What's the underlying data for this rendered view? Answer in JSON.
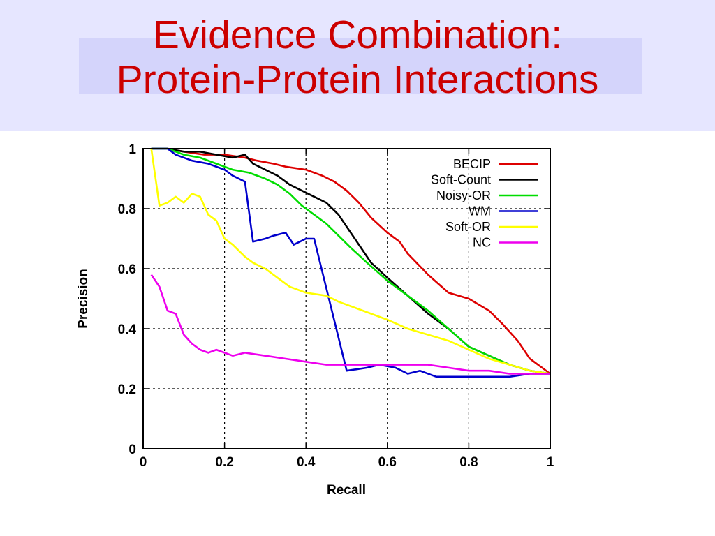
{
  "slide": {
    "title_line1": "Evidence Combination:",
    "title_line2": "Protein-Protein Interactions",
    "title_color": "#cc0000",
    "header_bg": "#e6e6ff"
  },
  "chart_data": {
    "type": "line",
    "title": "",
    "xlabel": "Recall",
    "ylabel": "Precision",
    "xlim": [
      0,
      1
    ],
    "ylim": [
      0,
      1
    ],
    "xticks": [
      0,
      0.2,
      0.4,
      0.6,
      0.8,
      1
    ],
    "yticks": [
      0,
      0.2,
      0.4,
      0.6,
      0.8,
      1
    ],
    "grid": true,
    "legend_position": "top-right",
    "series": [
      {
        "name": "BECIP",
        "color": "#dd0000",
        "x": [
          0.02,
          0.06,
          0.1,
          0.15,
          0.2,
          0.25,
          0.28,
          0.32,
          0.35,
          0.4,
          0.44,
          0.47,
          0.5,
          0.53,
          0.56,
          0.6,
          0.63,
          0.65,
          0.7,
          0.75,
          0.8,
          0.85,
          0.88,
          0.92,
          0.95,
          1.0
        ],
        "y": [
          1.0,
          1.0,
          0.99,
          0.98,
          0.98,
          0.97,
          0.96,
          0.95,
          0.94,
          0.93,
          0.91,
          0.89,
          0.86,
          0.82,
          0.77,
          0.72,
          0.69,
          0.65,
          0.58,
          0.52,
          0.5,
          0.46,
          0.42,
          0.36,
          0.3,
          0.25
        ]
      },
      {
        "name": "Soft-Count",
        "color": "#000000",
        "x": [
          0.02,
          0.06,
          0.1,
          0.14,
          0.18,
          0.22,
          0.25,
          0.27,
          0.3,
          0.33,
          0.36,
          0.39,
          0.42,
          0.45,
          0.48,
          0.5,
          0.53,
          0.56,
          0.6,
          0.65,
          0.7,
          0.75,
          0.8,
          0.85,
          0.9,
          0.95,
          1.0
        ],
        "y": [
          1.0,
          1.0,
          0.99,
          0.99,
          0.98,
          0.97,
          0.98,
          0.95,
          0.93,
          0.91,
          0.88,
          0.86,
          0.84,
          0.82,
          0.78,
          0.74,
          0.68,
          0.62,
          0.57,
          0.51,
          0.45,
          0.4,
          0.34,
          0.31,
          0.28,
          0.26,
          0.25
        ]
      },
      {
        "name": "Noisy-OR",
        "color": "#00dd00",
        "x": [
          0.02,
          0.06,
          0.1,
          0.14,
          0.18,
          0.22,
          0.26,
          0.3,
          0.33,
          0.36,
          0.39,
          0.42,
          0.45,
          0.48,
          0.51,
          0.55,
          0.6,
          0.65,
          0.7,
          0.75,
          0.8,
          0.85,
          0.9,
          0.95,
          1.0
        ],
        "y": [
          1.0,
          1.0,
          0.98,
          0.97,
          0.95,
          0.93,
          0.92,
          0.9,
          0.88,
          0.85,
          0.81,
          0.78,
          0.75,
          0.71,
          0.67,
          0.62,
          0.56,
          0.51,
          0.46,
          0.4,
          0.34,
          0.31,
          0.28,
          0.26,
          0.25
        ]
      },
      {
        "name": "WM",
        "color": "#0000cc",
        "x": [
          0.02,
          0.06,
          0.08,
          0.12,
          0.16,
          0.2,
          0.22,
          0.25,
          0.27,
          0.3,
          0.32,
          0.35,
          0.37,
          0.4,
          0.42,
          0.5,
          0.55,
          0.58,
          0.62,
          0.65,
          0.68,
          0.72,
          0.75,
          0.8,
          0.85,
          0.9,
          0.95,
          1.0
        ],
        "y": [
          1.0,
          1.0,
          0.98,
          0.96,
          0.95,
          0.93,
          0.91,
          0.89,
          0.69,
          0.7,
          0.71,
          0.72,
          0.68,
          0.7,
          0.7,
          0.26,
          0.27,
          0.28,
          0.27,
          0.25,
          0.26,
          0.24,
          0.24,
          0.24,
          0.24,
          0.24,
          0.25,
          0.25
        ]
      },
      {
        "name": "Soft-OR",
        "color": "#ffff00",
        "x": [
          0.02,
          0.04,
          0.06,
          0.08,
          0.1,
          0.12,
          0.14,
          0.16,
          0.18,
          0.2,
          0.22,
          0.25,
          0.27,
          0.3,
          0.33,
          0.36,
          0.4,
          0.45,
          0.48,
          0.52,
          0.56,
          0.6,
          0.65,
          0.7,
          0.75,
          0.8,
          0.85,
          0.9,
          0.95,
          1.0
        ],
        "y": [
          1.0,
          0.81,
          0.82,
          0.84,
          0.82,
          0.85,
          0.84,
          0.78,
          0.76,
          0.7,
          0.68,
          0.64,
          0.62,
          0.6,
          0.57,
          0.54,
          0.52,
          0.51,
          0.49,
          0.47,
          0.45,
          0.43,
          0.4,
          0.38,
          0.36,
          0.33,
          0.3,
          0.28,
          0.26,
          0.25
        ]
      },
      {
        "name": "NC",
        "color": "#ee00ee",
        "x": [
          0.02,
          0.04,
          0.06,
          0.08,
          0.1,
          0.12,
          0.14,
          0.16,
          0.18,
          0.2,
          0.22,
          0.25,
          0.3,
          0.35,
          0.4,
          0.45,
          0.5,
          0.55,
          0.6,
          0.65,
          0.7,
          0.75,
          0.8,
          0.85,
          0.9,
          0.95,
          1.0
        ],
        "y": [
          0.58,
          0.54,
          0.46,
          0.45,
          0.38,
          0.35,
          0.33,
          0.32,
          0.33,
          0.32,
          0.31,
          0.32,
          0.31,
          0.3,
          0.29,
          0.28,
          0.28,
          0.28,
          0.28,
          0.28,
          0.28,
          0.27,
          0.26,
          0.26,
          0.25,
          0.25,
          0.25
        ]
      }
    ]
  }
}
